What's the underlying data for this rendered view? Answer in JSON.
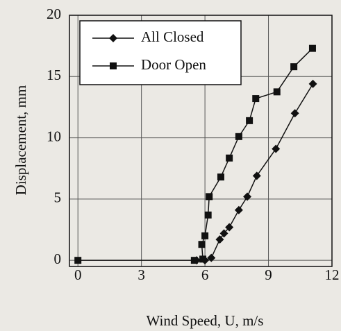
{
  "chart_data": {
    "type": "line",
    "xlabel": "Wind Speed, U, m/s",
    "ylabel": "Displacement, mm",
    "xlim": [
      -0.4,
      12
    ],
    "xticks": [
      0,
      3,
      6,
      9,
      12
    ],
    "ylim": [
      -0.5,
      20
    ],
    "yticks": [
      0,
      5,
      10,
      15,
      20
    ],
    "grid": true,
    "legend": "upper left",
    "series": [
      {
        "name": "All Closed",
        "color": "#111111",
        "marker": "diamond",
        "x": [
          5.6,
          6.0,
          6.3,
          6.7,
          6.9,
          7.15,
          7.6,
          8.0,
          8.45,
          9.35,
          10.25,
          11.1
        ],
        "values": [
          0,
          0,
          0.2,
          1.7,
          2.2,
          2.7,
          4.1,
          5.2,
          6.9,
          9.1,
          12.0,
          14.4
        ]
      },
      {
        "name": "Door Open",
        "color": "#111111",
        "marker": "square",
        "x": [
          0,
          5.5,
          5.9,
          5.85,
          6.0,
          6.15,
          6.2,
          6.75,
          7.15,
          7.6,
          8.1,
          8.4,
          9.4,
          10.2,
          11.08
        ],
        "values": [
          0,
          0,
          0.1,
          1.3,
          2.0,
          3.7,
          5.2,
          6.8,
          8.35,
          10.1,
          11.4,
          13.2,
          13.75,
          15.8,
          17.3
        ]
      }
    ]
  }
}
